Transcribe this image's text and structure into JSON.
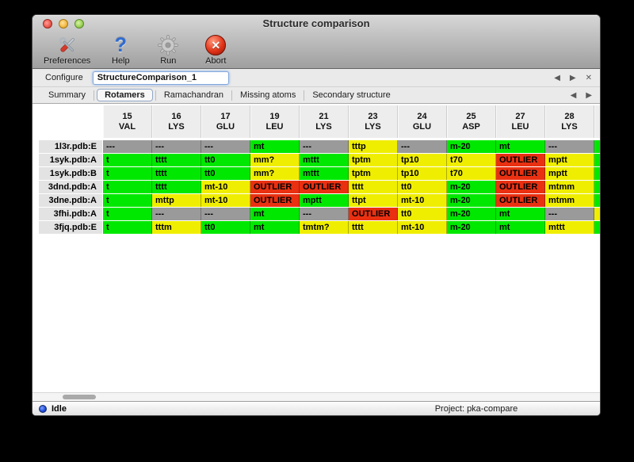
{
  "window": {
    "title": "Structure comparison"
  },
  "toolbar": {
    "buttons": [
      {
        "label": "Preferences",
        "icon": "tools-icon"
      },
      {
        "label": "Help",
        "icon": "question-icon"
      },
      {
        "label": "Run",
        "icon": "gear-icon"
      },
      {
        "label": "Abort",
        "icon": "abort-icon"
      }
    ],
    "help_glyph": "?",
    "abort_glyph": "✕"
  },
  "configure": {
    "label": "Configure",
    "value": "StructureComparison_1"
  },
  "nav": {
    "prev": "◀",
    "next": "▶",
    "close": "✕"
  },
  "tabs": [
    {
      "label": "Summary",
      "selected": false
    },
    {
      "label": "Rotamers",
      "selected": true
    },
    {
      "label": "Ramachandran",
      "selected": false
    },
    {
      "label": "Missing atoms",
      "selected": false
    },
    {
      "label": "Secondary structure",
      "selected": false
    }
  ],
  "colors": {
    "green": "#00e800",
    "yellow": "#f0ee00",
    "red": "#e93011",
    "gray": "#9a9a9a"
  },
  "table": {
    "columns": [
      {
        "num": "15",
        "res": "VAL"
      },
      {
        "num": "16",
        "res": "LYS"
      },
      {
        "num": "17",
        "res": "GLU"
      },
      {
        "num": "19",
        "res": "LEU"
      },
      {
        "num": "21",
        "res": "LYS"
      },
      {
        "num": "23",
        "res": "LYS"
      },
      {
        "num": "24",
        "res": "GLU"
      },
      {
        "num": "25",
        "res": "ASP"
      },
      {
        "num": "27",
        "res": "LEU"
      },
      {
        "num": "28",
        "res": "LYS"
      }
    ],
    "rows": [
      {
        "label": "1l3r.pdb:E",
        "cells": [
          [
            "---",
            "gray"
          ],
          [
            "---",
            "gray"
          ],
          [
            "---",
            "gray"
          ],
          [
            "mt",
            "green"
          ],
          [
            "---",
            "gray"
          ],
          [
            "tttp",
            "yellow"
          ],
          [
            "---",
            "gray"
          ],
          [
            "m-20",
            "green"
          ],
          [
            "mt",
            "green"
          ],
          [
            "---",
            "gray"
          ]
        ],
        "partial": "green"
      },
      {
        "label": "1syk.pdb:A",
        "cells": [
          [
            "t",
            "green"
          ],
          [
            "tttt",
            "green"
          ],
          [
            "tt0",
            "green"
          ],
          [
            "mm?",
            "yellow"
          ],
          [
            "mttt",
            "green"
          ],
          [
            "tptm",
            "yellow"
          ],
          [
            "tp10",
            "yellow"
          ],
          [
            "t70",
            "yellow"
          ],
          [
            "OUTLIER",
            "red"
          ],
          [
            "mptt",
            "yellow"
          ]
        ],
        "partial": "green"
      },
      {
        "label": "1syk.pdb:B",
        "cells": [
          [
            "t",
            "green"
          ],
          [
            "tttt",
            "green"
          ],
          [
            "tt0",
            "green"
          ],
          [
            "mm?",
            "yellow"
          ],
          [
            "mttt",
            "green"
          ],
          [
            "tptm",
            "yellow"
          ],
          [
            "tp10",
            "yellow"
          ],
          [
            "t70",
            "yellow"
          ],
          [
            "OUTLIER",
            "red"
          ],
          [
            "mptt",
            "yellow"
          ]
        ],
        "partial": "green"
      },
      {
        "label": "3dnd.pdb:A",
        "cells": [
          [
            "t",
            "green"
          ],
          [
            "tttt",
            "green"
          ],
          [
            "mt-10",
            "yellow"
          ],
          [
            "OUTLIER",
            "red"
          ],
          [
            "OUTLIER",
            "red"
          ],
          [
            "tttt",
            "yellow"
          ],
          [
            "tt0",
            "yellow"
          ],
          [
            "m-20",
            "green"
          ],
          [
            "OUTLIER",
            "red"
          ],
          [
            "mtmm",
            "yellow"
          ]
        ],
        "partial": "green"
      },
      {
        "label": "3dne.pdb:A",
        "cells": [
          [
            "t",
            "green"
          ],
          [
            "mttp",
            "yellow"
          ],
          [
            "mt-10",
            "yellow"
          ],
          [
            "OUTLIER",
            "red"
          ],
          [
            "mptt",
            "green"
          ],
          [
            "ttpt",
            "yellow"
          ],
          [
            "mt-10",
            "yellow"
          ],
          [
            "m-20",
            "green"
          ],
          [
            "OUTLIER",
            "red"
          ],
          [
            "mtmm",
            "yellow"
          ]
        ],
        "partial": "green"
      },
      {
        "label": "3fhi.pdb:A",
        "cells": [
          [
            "t",
            "green"
          ],
          [
            "---",
            "gray"
          ],
          [
            "---",
            "gray"
          ],
          [
            "mt",
            "green"
          ],
          [
            "---",
            "gray"
          ],
          [
            "OUTLIER",
            "red"
          ],
          [
            "tt0",
            "yellow"
          ],
          [
            "m-20",
            "green"
          ],
          [
            "mt",
            "green"
          ],
          [
            "---",
            "gray"
          ]
        ],
        "partial": "yellow"
      },
      {
        "label": "3fjq.pdb:E",
        "cells": [
          [
            "t",
            "green"
          ],
          [
            "tttm",
            "yellow"
          ],
          [
            "tt0",
            "green"
          ],
          [
            "mt",
            "green"
          ],
          [
            "tmtm?",
            "yellow"
          ],
          [
            "tttt",
            "yellow"
          ],
          [
            "mt-10",
            "yellow"
          ],
          [
            "m-20",
            "green"
          ],
          [
            "mt",
            "green"
          ],
          [
            "mttt",
            "yellow"
          ]
        ],
        "partial": "green"
      }
    ]
  },
  "status": {
    "state": "Idle",
    "project": "Project: pka-compare"
  }
}
